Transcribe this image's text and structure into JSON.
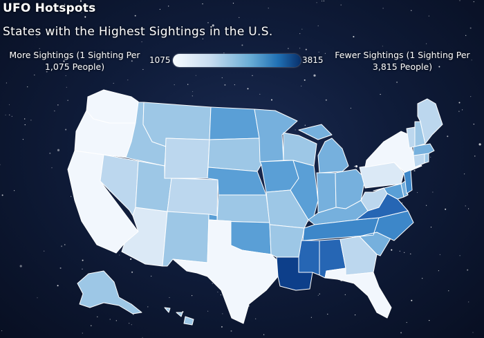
{
  "header": {
    "title": "UFO Hotspots",
    "subtitle": "States with the Highest Sightings in the U.S."
  },
  "legend": {
    "left_label": "More Sightings (1 Sighting Per 1,075 People)",
    "right_label": "Fewer Sightings (1 Sighting Per 3,815 People)",
    "scale_min": "1075",
    "scale_max": "3815",
    "colors": [
      "#f7fbff",
      "#c6dbef",
      "#6baed6",
      "#2171b5",
      "#08306b"
    ]
  },
  "map": {
    "color_scale": {
      "c1": "#f2f7fd",
      "c2": "#dbe9f6",
      "c3": "#bcd7ee",
      "c4": "#9dc7e6",
      "c5": "#76b0dd",
      "c6": "#5a9fd6",
      "c7": "#3d87c9",
      "c8": "#2666b4",
      "c9": "#0d3f8a"
    },
    "state_classes": {
      "washington": "c1",
      "oregon": "c1",
      "california": "c1",
      "idaho": "c4",
      "nevada": "c3",
      "arizona": "c2",
      "utah": "c4",
      "montana": "c4",
      "wyoming": "c3",
      "colorado": "c3",
      "new-mexico": "c4",
      "north-dakota": "c6",
      "south-dakota": "c4",
      "nebraska": "c6",
      "kansas": "c4",
      "oklahoma": "c6",
      "texas": "c1",
      "minnesota": "c5",
      "iowa": "c6",
      "missouri": "c4",
      "arkansas": "c4",
      "louisiana": "c9",
      "wisconsin": "c4",
      "illinois": "c6",
      "michigan": "c5",
      "indiana": "c5",
      "ohio": "c5",
      "kentucky": "c5",
      "tennessee": "c7",
      "mississippi": "c8",
      "alabama": "c8",
      "georgia": "c3",
      "florida": "c1",
      "south-carolina": "c5",
      "north-carolina": "c7",
      "virginia": "c8",
      "west-virginia": "c3",
      "pennsylvania": "c2",
      "new-york": "c1",
      "maryland": "c6",
      "delaware": "c5",
      "new-jersey": "c7",
      "connecticut": "c3",
      "rhode-island": "c4",
      "massachusetts": "c5",
      "vermont": "c3",
      "new-hampshire": "c4",
      "maine": "c3",
      "alaska": "c4",
      "hawaii": "c4"
    }
  }
}
